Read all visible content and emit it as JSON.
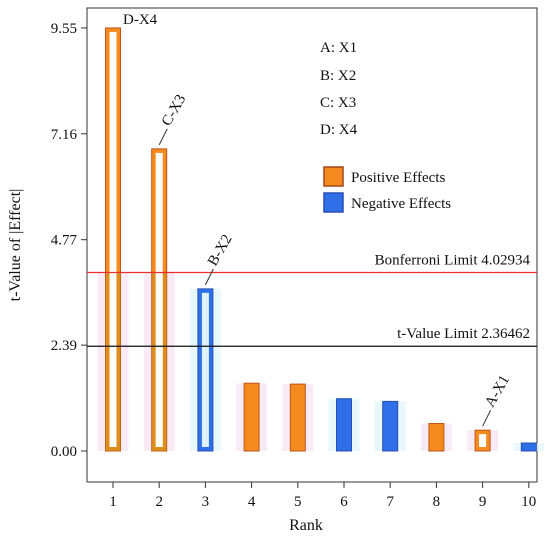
{
  "chart_data": {
    "type": "bar",
    "title": "",
    "xlabel": "Rank",
    "ylabel": "t-Value of |Effect|",
    "ylim": [
      -0.7,
      10.0
    ],
    "yticks": [
      0.0,
      2.39,
      4.77,
      7.16,
      9.55
    ],
    "ytick_labels": [
      "0.00",
      "2.39",
      "4.77",
      "7.16",
      "9.55"
    ],
    "categories": [
      "1",
      "2",
      "3",
      "4",
      "5",
      "6",
      "7",
      "8",
      "9",
      "10"
    ],
    "values": [
      9.55,
      6.82,
      3.66,
      1.53,
      1.51,
      1.18,
      1.12,
      0.62,
      0.47,
      0.18
    ],
    "effects": [
      "positive",
      "positive",
      "negative",
      "positive",
      "positive",
      "negative",
      "negative",
      "positive",
      "positive",
      "negative"
    ],
    "bar_labels": [
      "D-X4",
      "C-X3",
      "B-X2",
      "",
      "",
      "",
      "",
      "",
      "A-X1",
      ""
    ],
    "reference_lines": [
      {
        "label": "Bonferroni Limit 4.02934",
        "value": 4.02934,
        "color": "#e8312e"
      },
      {
        "label": "t-Value Limit 2.36462",
        "value": 2.36462,
        "color": "#111111"
      }
    ],
    "factor_key": [
      "A: X1",
      "B: X2",
      "C: X3",
      "D: X4"
    ],
    "legend": [
      {
        "label": "Positive Effects",
        "color": "#f58a1f",
        "text_color": "#f58a1f"
      },
      {
        "label": "Negative Effects",
        "color": "#2f6fe8",
        "text_color": "#2f8fe0"
      }
    ],
    "colors": {
      "positive": "#f58a1f",
      "negative": "#2f6fe8",
      "outline_positive": "#c0541b",
      "outline_negative": "#2a4fb3",
      "below_limit_tint": "#c89218"
    }
  }
}
